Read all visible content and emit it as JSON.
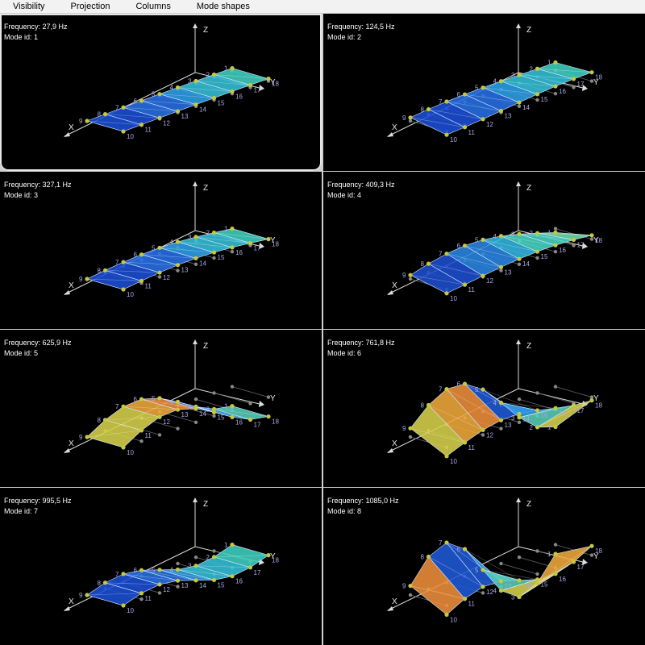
{
  "menu": [
    "Visibility",
    "Projection",
    "Columns",
    "Mode shapes"
  ],
  "axis_labels": {
    "x": "X",
    "y": "Y",
    "z": "Z"
  },
  "modes": [
    {
      "frequency": "Frequency: 27,9 Hz",
      "mode": "Mode id: 1",
      "amplitude": 0.1,
      "twist": 0.0,
      "wave": 0.5,
      "hue": "blue"
    },
    {
      "frequency": "Frequency: 124,5 Hz",
      "mode": "Mode id: 2",
      "amplitude": 0.35,
      "twist": 0.8,
      "wave": 0.5,
      "hue": "blue"
    },
    {
      "frequency": "Frequency: 327,1 Hz",
      "mode": "Mode id: 3",
      "amplitude": 0.25,
      "twist": 0.0,
      "wave": 1.0,
      "hue": "blue"
    },
    {
      "frequency": "Frequency: 409,3 Hz",
      "mode": "Mode id: 4",
      "amplitude": 0.4,
      "twist": 1.0,
      "wave": 1.0,
      "hue": "cyan"
    },
    {
      "frequency": "Frequency: 625,9 Hz",
      "mode": "Mode id: 5",
      "amplitude": 0.8,
      "twist": 0.0,
      "wave": 1.5,
      "hue": "mixed"
    },
    {
      "frequency": "Frequency: 761,8 Hz",
      "mode": "Mode id: 6",
      "amplitude": 0.9,
      "twist": 1.0,
      "wave": 1.5,
      "hue": "mixed"
    },
    {
      "frequency": "Frequency: 995,5 Hz",
      "mode": "Mode id: 7",
      "amplitude": 0.35,
      "twist": 0.0,
      "wave": 2.0,
      "hue": "blue"
    },
    {
      "frequency": "Frequency: 1085,0 Hz",
      "mode": "Mode id: 8",
      "amplitude": 0.95,
      "twist": 1.0,
      "wave": 2.0,
      "hue": "mixed"
    }
  ],
  "node_labels_top": [
    "9",
    "8",
    "7",
    "6",
    "5",
    "4",
    "3",
    "2",
    "1"
  ],
  "node_labels_bottom": [
    "10",
    "11",
    "12",
    "13",
    "14",
    "15",
    "16",
    "17",
    "18"
  ],
  "colors": {
    "node": "#c8c83a",
    "node_grey": "#888888",
    "axis": "#ffffff",
    "label": "#a9a9e6"
  }
}
